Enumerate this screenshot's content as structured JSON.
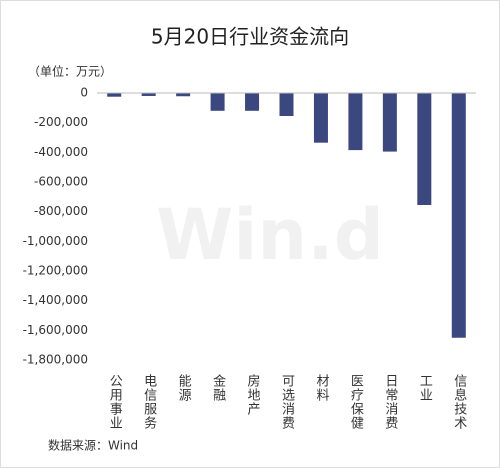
{
  "chart_data": {
    "type": "bar",
    "title": "5月20日行业资金流向",
    "unit_label": "（单位：万元）",
    "source": "数据来源：Wind",
    "watermark": "Win.d",
    "categories": [
      "公用事业",
      "电信服务",
      "能源",
      "金融",
      "房地产",
      "可选消费",
      "材料",
      "医疗保健",
      "日常消费",
      "工业",
      "信息技术"
    ],
    "values": [
      -25000,
      -20000,
      -22000,
      -120000,
      -120000,
      -155000,
      -335000,
      -385000,
      -395000,
      -755000,
      -1650000
    ],
    "color": "#3b4880",
    "ylim": [
      -1800000,
      0
    ],
    "yticks": [
      0,
      {
        "value": -200000,
        "label": "-200,000"
      },
      {
        "value": -400000,
        "label": "-400,000"
      },
      {
        "value": -600000,
        "label": "-600,000"
      },
      {
        "value": -800000,
        "label": "-800,000"
      },
      {
        "value": -1000000,
        "label": "-1,000,000"
      },
      {
        "value": -1200000,
        "label": "-1,200,000"
      },
      {
        "value": -1400000,
        "label": "-1,400,000"
      },
      {
        "value": -1600000,
        "label": "-1,600,000"
      },
      {
        "value": -1800000,
        "label": "-1,800,000"
      }
    ]
  }
}
